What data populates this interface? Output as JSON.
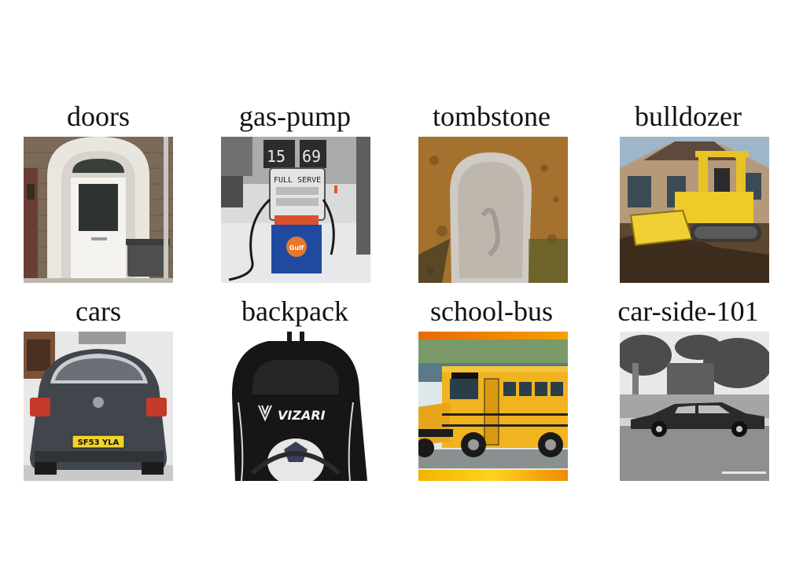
{
  "grid": {
    "row1": [
      {
        "label": "doors"
      },
      {
        "label": "gas-pump",
        "sign_text": "FULL SERVE",
        "logo_text": "Gulf"
      },
      {
        "label": "tombstone"
      },
      {
        "label": "bulldozer"
      }
    ],
    "row2": [
      {
        "label": "cars",
        "plate_text": "SF53 YLA"
      },
      {
        "label": "backpack",
        "brand_text": "VIZARI"
      },
      {
        "label": "school-bus"
      },
      {
        "label": "car-side-101"
      }
    ]
  }
}
